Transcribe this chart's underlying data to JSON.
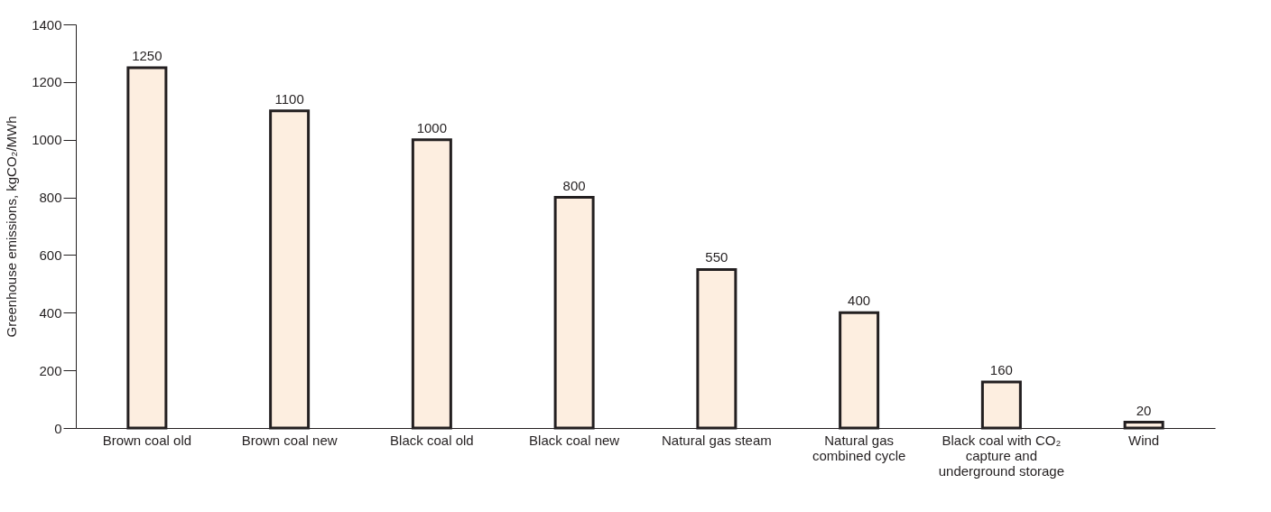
{
  "chart_data": {
    "type": "bar",
    "ylabel": "Greenhouse emissions, kgCO₂/MWh",
    "categories": [
      "Brown coal old",
      "Brown coal new",
      "Black coal old",
      "Black coal new",
      "Natural gas steam",
      "Natural gas combined cycle",
      "Black coal with CO₂ capture and underground storage",
      "Wind"
    ],
    "values": [
      1250,
      1100,
      1000,
      800,
      550,
      400,
      160,
      20
    ],
    "color": "#fdeee0",
    "ylim": [
      0,
      1400
    ],
    "yticks": [
      0,
      200,
      400,
      600,
      800,
      1000,
      1200,
      1400
    ],
    "data_labels": true
  }
}
